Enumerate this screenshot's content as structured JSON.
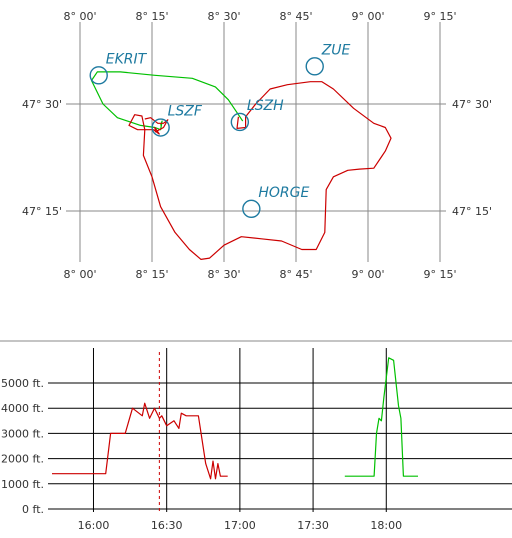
{
  "chart_data": [
    {
      "type": "map-track",
      "lon_ticks": [
        "8° 00'",
        "8° 15'",
        "8° 30'",
        "8° 45'",
        "9° 00'",
        "9° 15'"
      ],
      "lon_values": [
        8.0,
        8.25,
        8.5,
        8.75,
        9.0,
        9.25
      ],
      "lat_ticks": [
        "47° 30'",
        "47° 15'"
      ],
      "lat_values": [
        47.5,
        47.25
      ],
      "grid": true,
      "waypoints": [
        {
          "name": "EKRIT",
          "lon": 8.065,
          "lat": 47.567
        },
        {
          "name": "ZUE",
          "lon": 8.815,
          "lat": 47.588
        },
        {
          "name": "LSZF",
          "lon": 8.28,
          "lat": 47.445
        },
        {
          "name": "LSZH",
          "lon": 8.555,
          "lat": 47.458
        },
        {
          "name": "HORGE",
          "lon": 8.595,
          "lat": 47.255
        }
      ],
      "series": [
        {
          "color": "#00c000",
          "points": [
            [
              8.565,
              47.46
            ],
            [
              8.545,
              47.48
            ],
            [
              8.515,
              47.51
            ],
            [
              8.47,
              47.54
            ],
            [
              8.39,
              47.56
            ],
            [
              8.26,
              47.567
            ],
            [
              8.14,
              47.575
            ],
            [
              8.06,
              47.575
            ],
            [
              8.04,
              47.555
            ],
            [
              8.08,
              47.5
            ],
            [
              8.13,
              47.468
            ],
            [
              8.21,
              47.45
            ],
            [
              8.26,
              47.445
            ],
            [
              8.28,
              47.44
            ],
            [
              8.285,
              47.46
            ],
            [
              8.28,
              47.45
            ]
          ]
        },
        {
          "color": "#cc0000",
          "points": [
            [
              8.225,
              47.465
            ],
            [
              8.245,
              47.468
            ],
            [
              8.27,
              47.455
            ],
            [
              8.29,
              47.455
            ],
            [
              8.305,
              47.463
            ],
            [
              8.29,
              47.445
            ],
            [
              8.262,
              47.435
            ],
            [
              8.26,
              47.445
            ],
            [
              8.275,
              47.43
            ],
            [
              8.255,
              47.44
            ],
            [
              8.2,
              47.44
            ],
            [
              8.17,
              47.45
            ],
            [
              8.19,
              47.475
            ],
            [
              8.215,
              47.472
            ],
            [
              8.225,
              47.44
            ],
            [
              8.22,
              47.38
            ],
            [
              8.25,
              47.33
            ],
            [
              8.28,
              47.26
            ],
            [
              8.33,
              47.2
            ],
            [
              8.38,
              47.16
            ],
            [
              8.42,
              47.137
            ],
            [
              8.45,
              47.14
            ],
            [
              8.5,
              47.17
            ],
            [
              8.56,
              47.19
            ],
            [
              8.63,
              47.185
            ],
            [
              8.7,
              47.18
            ],
            [
              8.77,
              47.16
            ],
            [
              8.82,
              47.16
            ],
            [
              8.85,
              47.2
            ],
            [
              8.855,
              47.3
            ],
            [
              8.88,
              47.33
            ],
            [
              8.93,
              47.345
            ],
            [
              8.97,
              47.348
            ],
            [
              9.02,
              47.35
            ],
            [
              9.06,
              47.39
            ],
            [
              9.08,
              47.42
            ],
            [
              9.06,
              47.445
            ],
            [
              9.02,
              47.455
            ],
            [
              8.95,
              47.49
            ],
            [
              8.88,
              47.535
            ],
            [
              8.84,
              47.552
            ],
            [
              8.8,
              47.552
            ],
            [
              8.72,
              47.545
            ],
            [
              8.66,
              47.535
            ],
            [
              8.61,
              47.5
            ],
            [
              8.575,
              47.47
            ],
            [
              8.575,
              47.445
            ],
            [
              8.545,
              47.443
            ],
            [
              8.55,
              47.47
            ]
          ]
        }
      ]
    },
    {
      "type": "line",
      "x_ticks": [
        "16:00",
        "16:30",
        "17:00",
        "17:30",
        "18:00"
      ],
      "x_tick_values": [
        960,
        990,
        1020,
        1050,
        1080
      ],
      "xlim": [
        943,
        1131
      ],
      "y_ticks": [
        "5000 ft.",
        "4000 ft.",
        "3000 ft.",
        "2000 ft.",
        "1000 ft.",
        "0 ft."
      ],
      "y_tick_values": [
        5000,
        4000,
        3000,
        2000,
        1000,
        0
      ],
      "ylim": [
        -200,
        6200
      ],
      "grid": true,
      "marker_x": 987,
      "series": [
        {
          "color": "#cc0000",
          "x": [
            943,
            948,
            955,
            960,
            965,
            967,
            969,
            973,
            976,
            980,
            981,
            983,
            985,
            987,
            988,
            990,
            993,
            995,
            996,
            998,
            1001,
            1003,
            1006,
            1008,
            1009,
            1010,
            1011,
            1012,
            1013,
            1015
          ],
          "y": [
            1400,
            1400,
            1400,
            1400,
            1400,
            3000,
            3000,
            3000,
            4000,
            3700,
            4200,
            3600,
            4000,
            3600,
            3700,
            3300,
            3500,
            3200,
            3800,
            3700,
            3700,
            3700,
            1800,
            1200,
            1900,
            1200,
            1800,
            1300,
            1300,
            1300
          ]
        },
        {
          "color": "#00c000",
          "x": [
            1063,
            1068,
            1071,
            1072,
            1073,
            1074,
            1075,
            1076,
            1077,
            1078,
            1079,
            1081,
            1083,
            1085,
            1086,
            1087,
            1090,
            1093
          ],
          "y": [
            1300,
            1300,
            1300,
            1300,
            1300,
            1300,
            1300,
            3000,
            3600,
            3500,
            4400,
            6000,
            5900,
            4100,
            3600,
            1300,
            1300,
            1300
          ]
        }
      ]
    }
  ]
}
